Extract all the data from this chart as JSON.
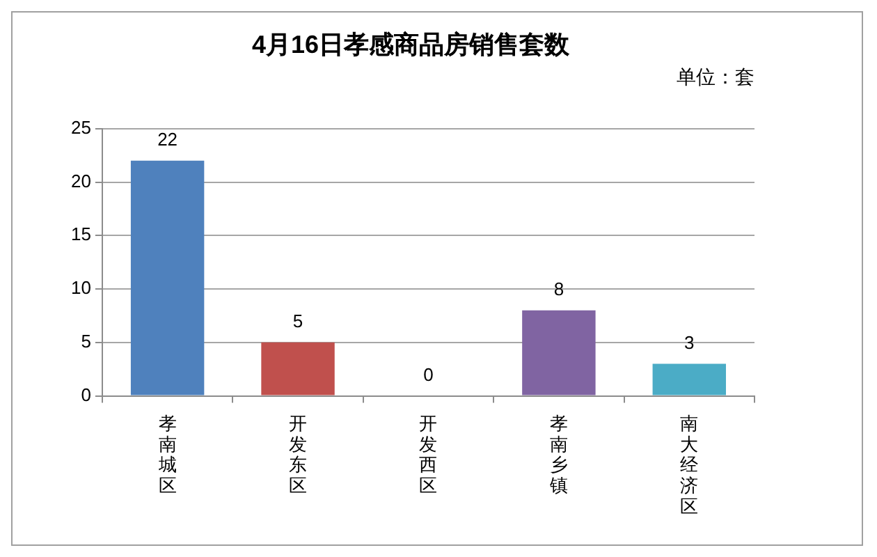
{
  "chart_data": {
    "type": "bar",
    "title": "4月16日孝感商品房销售套数",
    "subtitle": "单位：套",
    "categories": [
      "孝南城区",
      "开发东区",
      "开发西区",
      "孝南乡镇",
      "南大经济区"
    ],
    "values": [
      22,
      5,
      0,
      8,
      3
    ],
    "colors": [
      "#4f81bd",
      "#c0504d",
      "#9bbb59",
      "#8064a2",
      "#4bacc6"
    ],
    "ylim": [
      0,
      25
    ],
    "yticks": [
      0,
      5,
      10,
      15,
      20,
      25
    ],
    "grid": "y",
    "data_labels": true
  }
}
